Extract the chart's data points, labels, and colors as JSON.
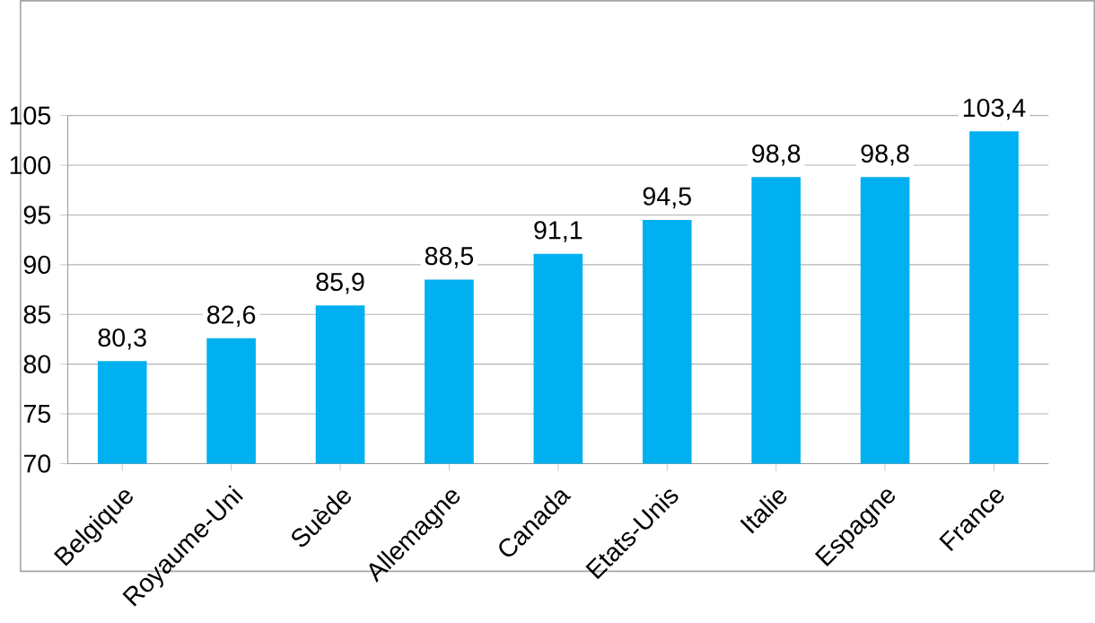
{
  "chart_data": {
    "type": "bar",
    "categories": [
      "Belgique",
      "Royaume-Uni",
      "Suède",
      "Allemagne",
      "Canada",
      "Etats-Unis",
      "Italie",
      "Espagne",
      "France"
    ],
    "values": [
      80.3,
      82.6,
      85.9,
      88.5,
      91.1,
      94.5,
      98.8,
      98.8,
      103.4
    ],
    "value_labels": [
      "80,3",
      "82,6",
      "85,9",
      "88,5",
      "91,1",
      "94,5",
      "98,8",
      "98,8",
      "103,4"
    ],
    "color": "#00b0f0",
    "ylim": [
      70,
      105
    ],
    "yticks": [
      70,
      75,
      80,
      85,
      90,
      95,
      100,
      105
    ],
    "grid": "y"
  }
}
